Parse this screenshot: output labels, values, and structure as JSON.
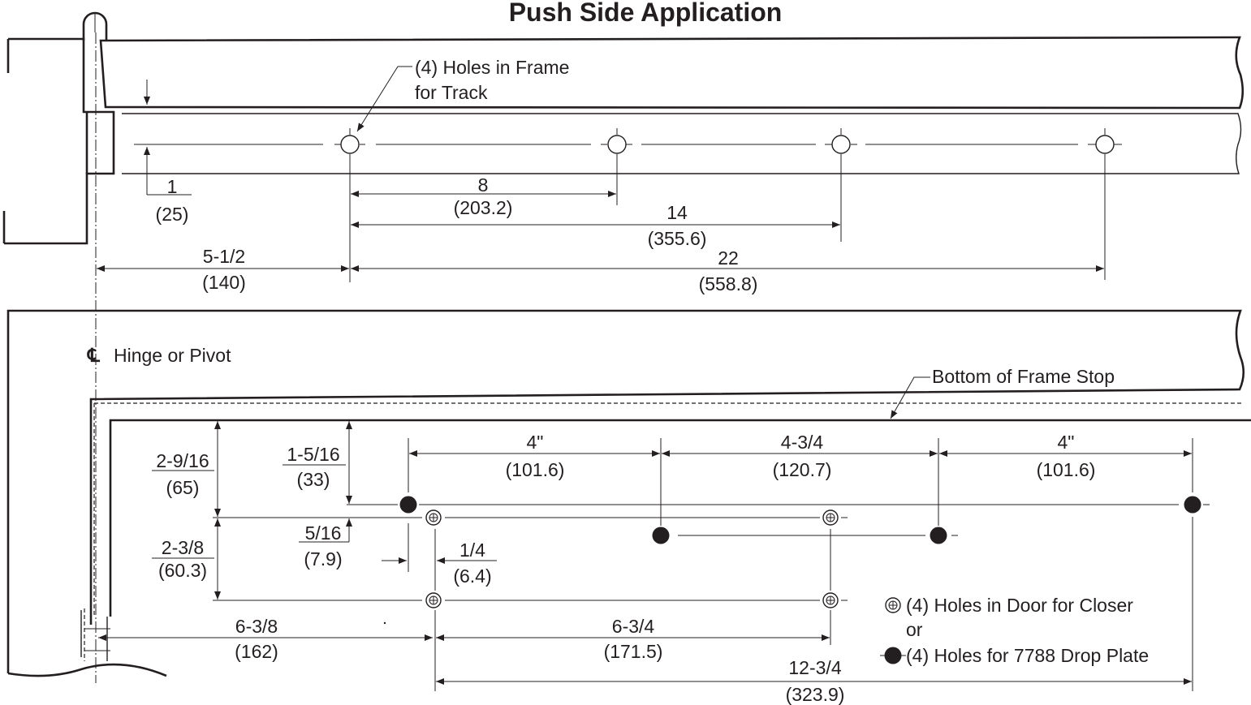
{
  "title": "Push Side Application",
  "frame_note": [
    "(4) Holes in Frame",
    "for Track"
  ],
  "frame_dims": {
    "one": "1",
    "one_mm": "(25)",
    "eight": "8",
    "eight_mm": "(203.2)",
    "fourteen": "14",
    "fourteen_mm": "(355.6)",
    "five_half": "5-1/2",
    "five_half_mm": "(140)",
    "twentytwo": "22",
    "twentytwo_mm": "(558.8)"
  },
  "hinge_label": "Hinge or Pivot",
  "cl_symbol": "℄",
  "frame_stop_label": "Bottom of Frame Stop",
  "door_dims": {
    "d2_9_16": "2-9/16",
    "d2_9_16_mm": "(65)",
    "d1_5_16": "1-5/16",
    "d1_5_16_mm": "(33)",
    "d2_3_8": "2-3/8",
    "d2_3_8_mm": "(60.3)",
    "d5_16": "5/16",
    "d5_16_mm": "(7.9)",
    "d1_4": "1/4",
    "d1_4_mm": "(6.4)",
    "d4a": "4\"",
    "d4a_mm": "(101.6)",
    "d4_3_4": "4-3/4",
    "d4_3_4_mm": "(120.7)",
    "d4b": "4\"",
    "d4b_mm": "(101.6)",
    "d6_3_8": "6-3/8",
    "d6_3_8_mm": "(162)",
    "d6_3_4": "6-3/4",
    "d6_3_4_mm": "(171.5)",
    "d12_3_4": "12-3/4",
    "d12_3_4_mm": "(323.9)"
  },
  "legend": {
    "closer": "(4) Holes in Door for Closer",
    "or": "or",
    "drop_plate": "(4) Holes for 7788 Drop Plate"
  }
}
